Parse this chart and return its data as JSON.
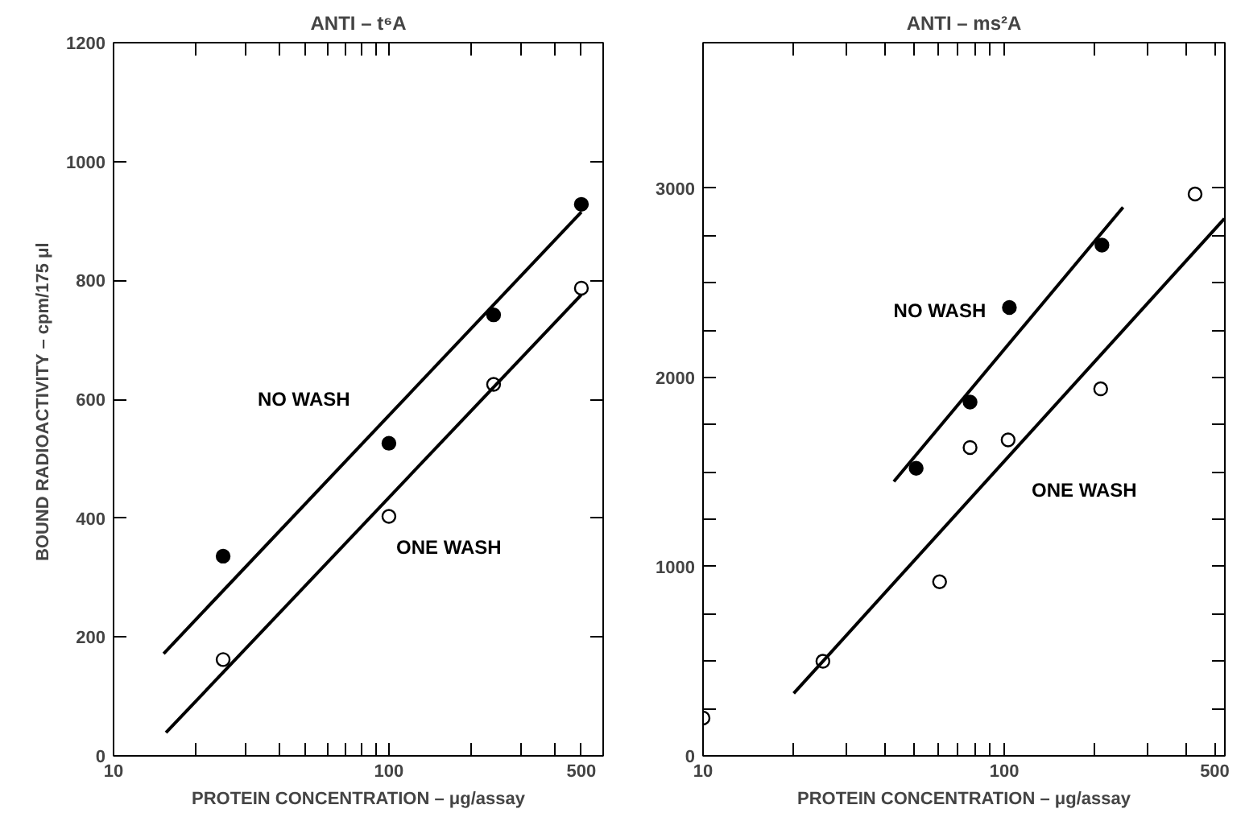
{
  "chart_data": [
    {
      "type": "scatter",
      "title": "ANTI – t⁶A",
      "xlabel": "PROTEIN CONCENTRATION – μg/assay",
      "ylabel": "BOUND  RADIOACTIVITY – cpm/175 μl",
      "log": "x",
      "grid": false,
      "xlim": [
        10,
        600
      ],
      "xticks": [
        10,
        {
          "value": 20,
          "label": null
        },
        {
          "value": 30,
          "label": null
        },
        {
          "value": 40,
          "label": null
        },
        {
          "value": 50,
          "label": null
        },
        {
          "value": 60,
          "label": null
        },
        {
          "value": 70,
          "label": null
        },
        {
          "value": 80,
          "label": null
        },
        {
          "value": 90,
          "label": null
        },
        100,
        {
          "value": 200,
          "label": null
        },
        {
          "value": 300,
          "label": null
        },
        {
          "value": 400,
          "label": null
        },
        500
      ],
      "ylim": [
        0,
        1200
      ],
      "yticks": [
        0,
        200,
        400,
        600,
        800,
        1000,
        1200
      ],
      "series": [
        {
          "marker": "circle",
          "color": "#000000",
          "x": [
            25,
            100,
            240,
            500
          ],
          "values": [
            336,
            526,
            742,
            928
          ]
        },
        {
          "marker": "circle",
          "color": "#ffffff",
          "x": [
            25,
            100,
            240,
            500
          ],
          "values": [
            162,
            403,
            625,
            787
          ]
        },
        {
          "type": "line",
          "name": "NO WASH",
          "color": "#000000",
          "x": [
            15.2,
            500
          ],
          "values": [
            172,
            915
          ]
        },
        {
          "type": "line",
          "name": "ONE WASH",
          "color": "#000000",
          "x": [
            15.5,
            500
          ],
          "values": [
            39,
            776
          ]
        }
      ]
    },
    {
      "type": "scatter",
      "title": "ANTI – ms²A",
      "xlabel": "PROTEIN CONCENTRATION – μg/assay",
      "log": "x",
      "grid": false,
      "xlim": [
        10,
        540
      ],
      "xticks": [
        10,
        {
          "value": 20,
          "label": null
        },
        {
          "value": 30,
          "label": null
        },
        {
          "value": 40,
          "label": null
        },
        {
          "value": 50,
          "label": null
        },
        {
          "value": 60,
          "label": null
        },
        {
          "value": 70,
          "label": null
        },
        {
          "value": 80,
          "label": null
        },
        {
          "value": 90,
          "label": null
        },
        100,
        {
          "value": 200,
          "label": null
        },
        {
          "value": 300,
          "label": null
        },
        {
          "value": 400,
          "label": null
        },
        500
      ],
      "ylim": [
        0,
        3770
      ],
      "yticks": [
        0,
        {
          "value": 250,
          "label": null
        },
        {
          "value": 500,
          "label": null
        },
        {
          "value": 750,
          "label": null
        },
        1000,
        {
          "value": 1250,
          "label": null
        },
        {
          "value": 1500,
          "label": null
        },
        {
          "value": 1750,
          "label": null
        },
        2000,
        {
          "value": 2250,
          "label": null
        },
        {
          "value": 2500,
          "label": null
        },
        {
          "value": 2750,
          "label": null
        },
        3000
      ],
      "series": [
        {
          "marker": "circle",
          "color": "#000000",
          "x": [
            51,
            77,
            104,
            211
          ],
          "values": [
            1520,
            1870,
            2370,
            2700
          ]
        },
        {
          "marker": "circle",
          "color": "#ffffff",
          "x": [
            10,
            25,
            61,
            77,
            103,
            209,
            430
          ],
          "values": [
            200,
            500,
            920,
            1630,
            1670,
            1940,
            2970
          ]
        },
        {
          "type": "line",
          "name": "NO WASH",
          "color": "#000000",
          "x": [
            43,
            248
          ],
          "values": [
            1450,
            2900
          ]
        },
        {
          "type": "line",
          "name": "ONE WASH",
          "color": "#000000",
          "x": [
            20,
            538
          ],
          "values": [
            330,
            2840
          ]
        }
      ]
    }
  ]
}
